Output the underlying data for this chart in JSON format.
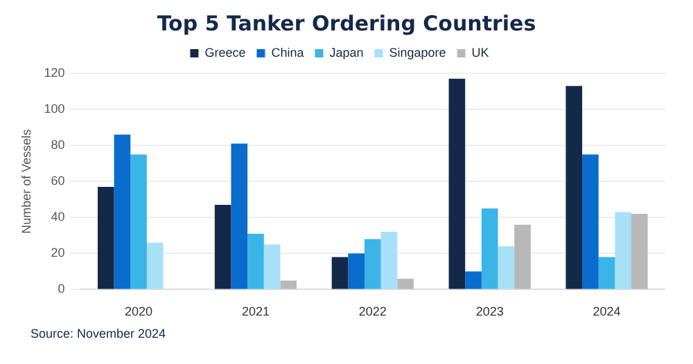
{
  "chart_data": {
    "type": "bar",
    "title": "Top 5 Tanker Ordering Countries",
    "ylabel": "Number of Vessels",
    "categories": [
      "2020",
      "2021",
      "2022",
      "2023",
      "2024"
    ],
    "series": [
      {
        "name": "Greece",
        "color": "#14294a",
        "values": [
          57,
          47,
          18,
          117,
          113
        ]
      },
      {
        "name": "China",
        "color": "#0a6ccc",
        "values": [
          86,
          81,
          20,
          10,
          75
        ]
      },
      {
        "name": "Japan",
        "color": "#3bb4e8",
        "values": [
          75,
          31,
          28,
          45,
          18
        ]
      },
      {
        "name": "Singapore",
        "color": "#a8e0f8",
        "values": [
          26,
          25,
          32,
          24,
          43
        ]
      },
      {
        "name": "UK",
        "color": "#b8b8b8",
        "values": [
          0,
          5,
          6,
          36,
          42
        ]
      }
    ],
    "ylim": [
      0,
      120
    ],
    "yticks": [
      0,
      20,
      40,
      60,
      80,
      100,
      120
    ],
    "grid": "y",
    "legend": "top",
    "annotations": [
      "Source: November 2024"
    ]
  }
}
